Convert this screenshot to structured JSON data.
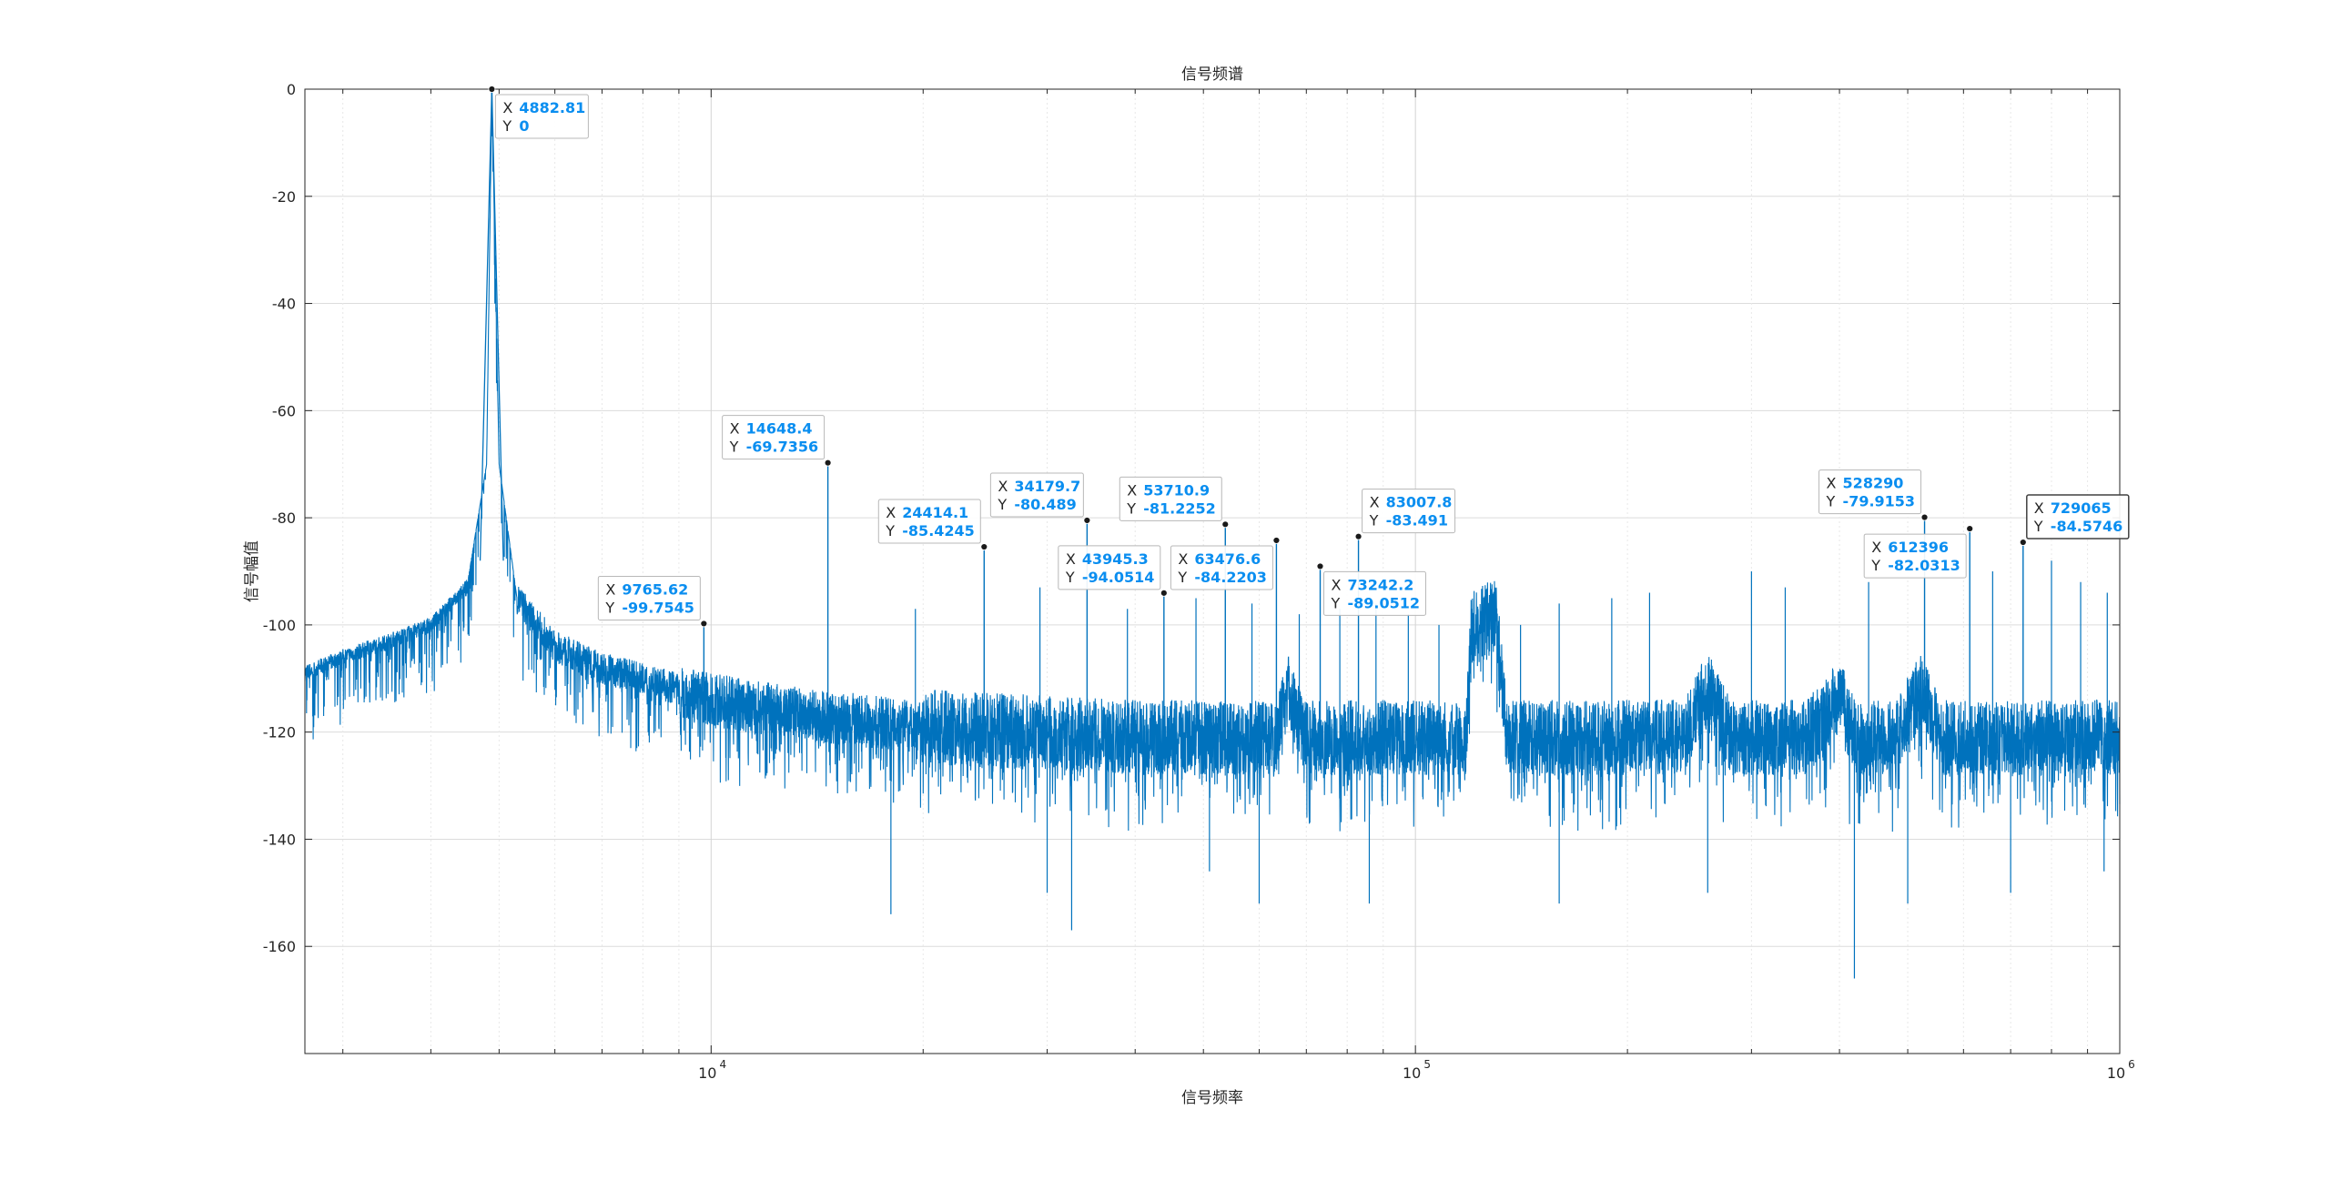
{
  "chart_data": {
    "type": "line",
    "title": "信号频谱",
    "xlabel": "信号频率",
    "ylabel": "信号幅值",
    "x_scale": "log",
    "xlim": [
      2650,
      1000000
    ],
    "ylim": [
      -180,
      0
    ],
    "y_ticks": [
      0,
      -20,
      -40,
      -60,
      -80,
      -100,
      -120,
      -140,
      -160
    ],
    "x_ticks": [
      {
        "value": 10000,
        "base": "10",
        "exp": "4"
      },
      {
        "value": 100000,
        "base": "10",
        "exp": "5"
      },
      {
        "value": 1000000,
        "base": "10",
        "exp": "6"
      }
    ],
    "grid": true,
    "line_color": "#0072bd",
    "noise_floor_segments": [
      {
        "x": 2650,
        "y": -109
      },
      {
        "x": 3000,
        "y": -106
      },
      {
        "x": 3500,
        "y": -103
      },
      {
        "x": 4000,
        "y": -100
      },
      {
        "x": 4500,
        "y": -93
      },
      {
        "x": 4800,
        "y": -70
      },
      {
        "x": 4882.81,
        "y": 0
      },
      {
        "x": 5000,
        "y": -70
      },
      {
        "x": 5300,
        "y": -95
      },
      {
        "x": 6000,
        "y": -104
      },
      {
        "x": 7000,
        "y": -108
      },
      {
        "x": 8500,
        "y": -111
      },
      {
        "x": 10000,
        "y": -114
      },
      {
        "x": 14000,
        "y": -117
      },
      {
        "x": 20000,
        "y": -119
      },
      {
        "x": 40000,
        "y": -121
      },
      {
        "x": 63000,
        "y": -121
      },
      {
        "x": 66000,
        "y": -112
      },
      {
        "x": 70000,
        "y": -121
      },
      {
        "x": 118000,
        "y": -121
      },
      {
        "x": 120000,
        "y": -101
      },
      {
        "x": 130000,
        "y": -98
      },
      {
        "x": 135000,
        "y": -121
      },
      {
        "x": 240000,
        "y": -121
      },
      {
        "x": 260000,
        "y": -112
      },
      {
        "x": 280000,
        "y": -121
      },
      {
        "x": 360000,
        "y": -121
      },
      {
        "x": 400000,
        "y": -113
      },
      {
        "x": 420000,
        "y": -121
      },
      {
        "x": 480000,
        "y": -121
      },
      {
        "x": 520000,
        "y": -112
      },
      {
        "x": 560000,
        "y": -121
      },
      {
        "x": 1000000,
        "y": -121
      }
    ],
    "datatips": [
      {
        "x": 4882.81,
        "y": 0,
        "xlabel": "X",
        "ylabel": "Y",
        "x_text": "4882.81",
        "y_text": "0",
        "place": "right-below"
      },
      {
        "x": 9765.62,
        "y": -99.7545,
        "xlabel": "X",
        "ylabel": "Y",
        "x_text": "9765.62",
        "y_text": "-99.7545",
        "place": "left-above"
      },
      {
        "x": 14648.4,
        "y": -69.7356,
        "xlabel": "X",
        "ylabel": "Y",
        "x_text": "14648.4",
        "y_text": "-69.7356",
        "place": "left-above"
      },
      {
        "x": 24414.1,
        "y": -85.4245,
        "xlabel": "X",
        "ylabel": "Y",
        "x_text": "24414.1",
        "y_text": "-85.4245",
        "place": "left-above"
      },
      {
        "x": 34179.7,
        "y": -80.489,
        "xlabel": "X",
        "ylabel": "Y",
        "x_text": "34179.7",
        "y_text": "-80.489",
        "place": "left-above"
      },
      {
        "x": 43945.3,
        "y": -94.0514,
        "xlabel": "X",
        "ylabel": "Y",
        "x_text": "43945.3",
        "y_text": "-94.0514",
        "place": "left-above"
      },
      {
        "x": 53710.9,
        "y": -81.2252,
        "xlabel": "X",
        "ylabel": "Y",
        "x_text": "53710.9",
        "y_text": "-81.2252",
        "place": "left-above"
      },
      {
        "x": 63476.6,
        "y": -84.2203,
        "xlabel": "X",
        "ylabel": "Y",
        "x_text": "63476.6",
        "y_text": "-84.2203",
        "place": "left-below"
      },
      {
        "x": 73242.2,
        "y": -89.0512,
        "xlabel": "X",
        "ylabel": "Y",
        "x_text": "73242.2",
        "y_text": "-89.0512",
        "place": "right-below"
      },
      {
        "x": 83007.8,
        "y": -83.491,
        "xlabel": "X",
        "ylabel": "Y",
        "x_text": "83007.8",
        "y_text": "-83.491",
        "place": "right-above"
      },
      {
        "x": 528290,
        "y": -79.9153,
        "xlabel": "X",
        "ylabel": "Y",
        "x_text": "528290",
        "y_text": "-79.9153",
        "place": "left-above"
      },
      {
        "x": 612396,
        "y": -82.0313,
        "xlabel": "X",
        "ylabel": "Y",
        "x_text": "612396",
        "y_text": "-82.0313",
        "place": "left-below"
      },
      {
        "x": 729065,
        "y": -84.5746,
        "xlabel": "X",
        "ylabel": "Y",
        "x_text": "729065",
        "y_text": "-84.5746",
        "place": "right-above",
        "selected": true
      }
    ],
    "extra_spikes": [
      {
        "x": 19500,
        "y": -97
      },
      {
        "x": 29300,
        "y": -93
      },
      {
        "x": 39000,
        "y": -97
      },
      {
        "x": 48800,
        "y": -95
      },
      {
        "x": 58600,
        "y": -96
      },
      {
        "x": 68400,
        "y": -98
      },
      {
        "x": 78100,
        "y": -97
      },
      {
        "x": 87900,
        "y": -96
      },
      {
        "x": 97700,
        "y": -98
      },
      {
        "x": 108000,
        "y": -100
      },
      {
        "x": 141000,
        "y": -100
      },
      {
        "x": 160000,
        "y": -96
      },
      {
        "x": 190000,
        "y": -95
      },
      {
        "x": 215000,
        "y": -94
      },
      {
        "x": 300000,
        "y": -90
      },
      {
        "x": 335000,
        "y": -93
      },
      {
        "x": 440000,
        "y": -92
      },
      {
        "x": 660000,
        "y": -90
      },
      {
        "x": 800000,
        "y": -88
      },
      {
        "x": 880000,
        "y": -92
      },
      {
        "x": 960000,
        "y": -94
      }
    ],
    "low_spikes": [
      {
        "x": 18000,
        "y": -154
      },
      {
        "x": 30000,
        "y": -150
      },
      {
        "x": 32500,
        "y": -157
      },
      {
        "x": 51000,
        "y": -146
      },
      {
        "x": 60000,
        "y": -152
      },
      {
        "x": 86000,
        "y": -152
      },
      {
        "x": 160000,
        "y": -152
      },
      {
        "x": 260000,
        "y": -150
      },
      {
        "x": 420000,
        "y": -166
      },
      {
        "x": 500000,
        "y": -152
      },
      {
        "x": 700000,
        "y": -150
      },
      {
        "x": 950000,
        "y": -146
      }
    ]
  }
}
